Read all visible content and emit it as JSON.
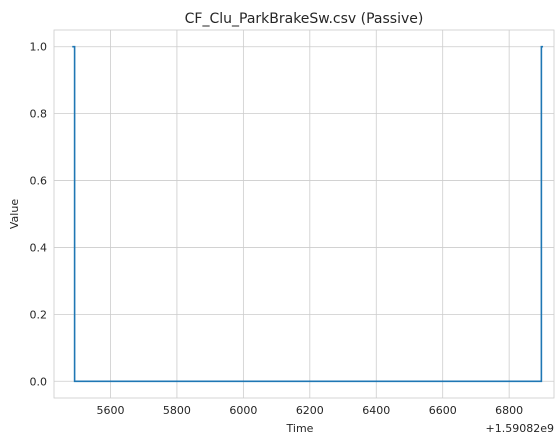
{
  "chart_data": {
    "type": "line",
    "title": "CF_Clu_ParkBrakeSw.csv (Passive)",
    "xlabel": "Time",
    "ylabel": "Value",
    "offset_label": "+1.59082e9",
    "x_ticks": [
      5600,
      5800,
      6000,
      6200,
      6400,
      6600,
      6800
    ],
    "y_ticks": [
      "0.0",
      "0.2",
      "0.4",
      "0.6",
      "0.8",
      "1.0"
    ],
    "xlim": [
      5430,
      6935
    ],
    "ylim": [
      -0.05,
      1.05
    ],
    "grid": true,
    "series": [
      {
        "color": "#1f77b4",
        "x": [
          5485,
          5492,
          5492,
          6897,
          6897,
          6902
        ],
        "y": [
          1,
          1,
          0,
          0,
          1,
          1
        ]
      }
    ]
  }
}
